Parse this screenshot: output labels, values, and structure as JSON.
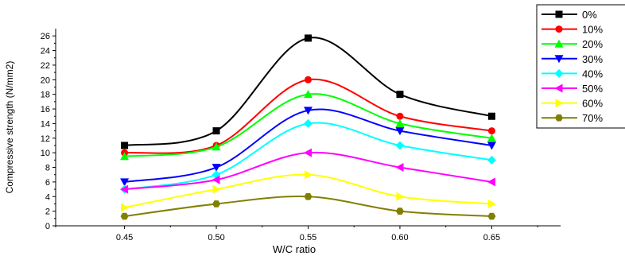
{
  "chart_data": {
    "type": "line",
    "xlabel": "W/C ratio",
    "ylabel": "Compressive strength (N/mm2)",
    "x": [
      0.45,
      0.5,
      0.55,
      0.6,
      0.65
    ],
    "x_tick_labels": [
      "0.45",
      "0.50",
      "0.55",
      "0.60",
      "0.65"
    ],
    "y_ticks": [
      0,
      2,
      4,
      6,
      8,
      10,
      12,
      14,
      16,
      18,
      20,
      22,
      24,
      26
    ],
    "xlim": [
      0.4125,
      0.6875
    ],
    "ylim": [
      0,
      27
    ],
    "grid": false,
    "smoothed": true,
    "legend_placement": "top-right",
    "series": [
      {
        "name": "0%",
        "color": "#000000",
        "marker": "square",
        "values": [
          11,
          13,
          25.7,
          18,
          15
        ]
      },
      {
        "name": "10%",
        "color": "#ff0000",
        "marker": "circle",
        "values": [
          10,
          11,
          20,
          15,
          13
        ]
      },
      {
        "name": "20%",
        "color": "#00ff00",
        "marker": "triangle-up",
        "values": [
          9.5,
          10.8,
          18,
          14,
          12
        ]
      },
      {
        "name": "30%",
        "color": "#0000ff",
        "marker": "triangle-down",
        "values": [
          6,
          8,
          15.8,
          13,
          11
        ]
      },
      {
        "name": "40%",
        "color": "#00ffff",
        "marker": "diamond",
        "values": [
          5,
          7,
          14,
          11,
          9
        ]
      },
      {
        "name": "50%",
        "color": "#ff00ff",
        "marker": "triangle-left",
        "values": [
          5,
          6.3,
          10,
          8,
          6
        ]
      },
      {
        "name": "60%",
        "color": "#ffff00",
        "marker": "triangle-right",
        "values": [
          2.5,
          5,
          7,
          4,
          3
        ]
      },
      {
        "name": "70%",
        "color": "#808000",
        "marker": "hexagon",
        "values": [
          1.3,
          3,
          4,
          2,
          1.3
        ]
      }
    ]
  }
}
